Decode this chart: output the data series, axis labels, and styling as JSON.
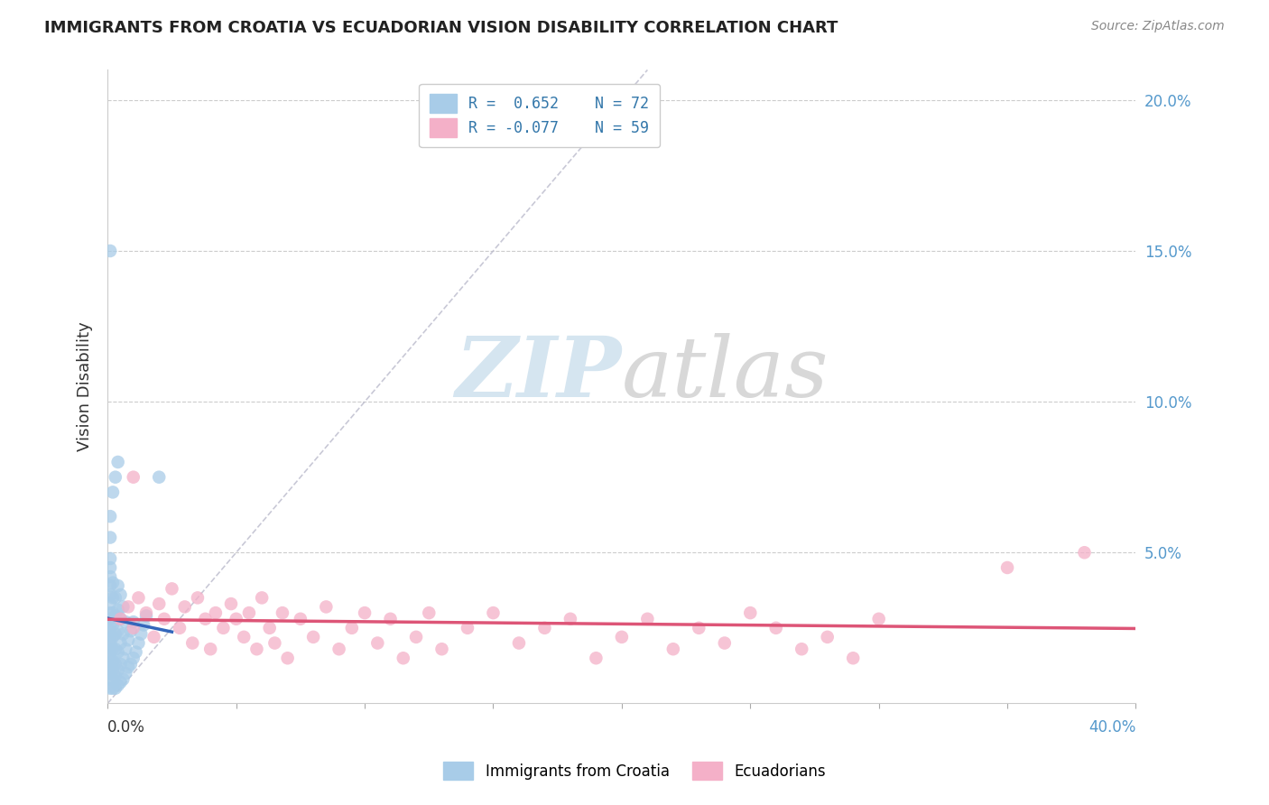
{
  "title": "IMMIGRANTS FROM CROATIA VS ECUADORIAN VISION DISABILITY CORRELATION CHART",
  "source": "Source: ZipAtlas.com",
  "ylabel": "Vision Disability",
  "xlim": [
    0.0,
    0.4
  ],
  "ylim": [
    0.0,
    0.21
  ],
  "blue_color": "#a8cce8",
  "pink_color": "#f4b0c8",
  "blue_line_color": "#3366bb",
  "pink_line_color": "#dd5577",
  "diag_color": "#bbbbcc",
  "background_color": "#ffffff",
  "grid_color": "#cccccc",
  "right_tick_color": "#5599cc",
  "title_color": "#222222",
  "source_color": "#888888",
  "ylabel_color": "#333333",
  "blue_scatter_x": [
    0.001,
    0.001,
    0.001,
    0.001,
    0.001,
    0.001,
    0.001,
    0.001,
    0.001,
    0.001,
    0.001,
    0.001,
    0.001,
    0.001,
    0.001,
    0.001,
    0.001,
    0.001,
    0.002,
    0.002,
    0.002,
    0.002,
    0.002,
    0.002,
    0.002,
    0.002,
    0.002,
    0.002,
    0.003,
    0.003,
    0.003,
    0.003,
    0.003,
    0.003,
    0.003,
    0.004,
    0.004,
    0.004,
    0.004,
    0.004,
    0.004,
    0.005,
    0.005,
    0.005,
    0.005,
    0.005,
    0.006,
    0.006,
    0.006,
    0.006,
    0.007,
    0.007,
    0.007,
    0.008,
    0.008,
    0.009,
    0.009,
    0.01,
    0.01,
    0.011,
    0.012,
    0.013,
    0.014,
    0.015,
    0.001,
    0.001,
    0.001,
    0.002,
    0.003,
    0.004,
    0.02,
    0.001
  ],
  "blue_scatter_y": [
    0.005,
    0.008,
    0.01,
    0.012,
    0.014,
    0.016,
    0.018,
    0.02,
    0.022,
    0.024,
    0.026,
    0.028,
    0.03,
    0.033,
    0.036,
    0.039,
    0.042,
    0.045,
    0.005,
    0.008,
    0.011,
    0.014,
    0.018,
    0.022,
    0.026,
    0.03,
    0.035,
    0.04,
    0.005,
    0.009,
    0.013,
    0.018,
    0.023,
    0.029,
    0.035,
    0.006,
    0.011,
    0.017,
    0.024,
    0.031,
    0.039,
    0.007,
    0.013,
    0.02,
    0.028,
    0.036,
    0.008,
    0.015,
    0.023,
    0.032,
    0.01,
    0.018,
    0.027,
    0.012,
    0.021,
    0.013,
    0.024,
    0.015,
    0.027,
    0.017,
    0.02,
    0.023,
    0.026,
    0.029,
    0.048,
    0.055,
    0.062,
    0.07,
    0.075,
    0.08,
    0.075,
    0.15
  ],
  "pink_scatter_x": [
    0.005,
    0.008,
    0.01,
    0.012,
    0.015,
    0.018,
    0.02,
    0.022,
    0.025,
    0.028,
    0.03,
    0.033,
    0.035,
    0.038,
    0.04,
    0.042,
    0.045,
    0.048,
    0.05,
    0.053,
    0.055,
    0.058,
    0.06,
    0.063,
    0.065,
    0.068,
    0.07,
    0.075,
    0.08,
    0.085,
    0.09,
    0.095,
    0.1,
    0.105,
    0.11,
    0.115,
    0.12,
    0.125,
    0.13,
    0.14,
    0.15,
    0.16,
    0.17,
    0.18,
    0.19,
    0.2,
    0.21,
    0.22,
    0.23,
    0.24,
    0.25,
    0.26,
    0.27,
    0.28,
    0.29,
    0.3,
    0.35,
    0.38,
    0.01
  ],
  "pink_scatter_y": [
    0.028,
    0.032,
    0.025,
    0.035,
    0.03,
    0.022,
    0.033,
    0.028,
    0.038,
    0.025,
    0.032,
    0.02,
    0.035,
    0.028,
    0.018,
    0.03,
    0.025,
    0.033,
    0.028,
    0.022,
    0.03,
    0.018,
    0.035,
    0.025,
    0.02,
    0.03,
    0.015,
    0.028,
    0.022,
    0.032,
    0.018,
    0.025,
    0.03,
    0.02,
    0.028,
    0.015,
    0.022,
    0.03,
    0.018,
    0.025,
    0.03,
    0.02,
    0.025,
    0.028,
    0.015,
    0.022,
    0.028,
    0.018,
    0.025,
    0.02,
    0.03,
    0.025,
    0.018,
    0.022,
    0.015,
    0.028,
    0.045,
    0.05,
    0.075
  ],
  "legend_line1": "R =  0.652    N = 72",
  "legend_line2": "R = -0.077    N = 59"
}
